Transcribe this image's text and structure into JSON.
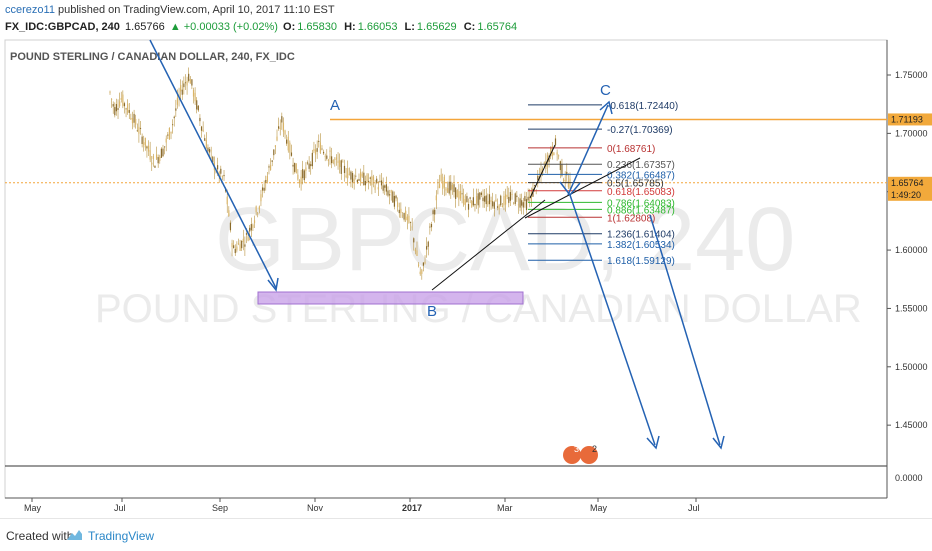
{
  "publish": {
    "author": "ccerezo11",
    "text": " published on TradingView.com, April 10, 2017 11:10 EST"
  },
  "ohlc": {
    "symbol": "FX_IDC:GBPCAD, 240",
    "last": "1.65766",
    "change": "▲ +0.00033 (+0.02%)",
    "open_label": "O:",
    "open": "1.65830",
    "high_label": "H:",
    "high": "1.66053",
    "low_label": "L:",
    "low": "1.65629",
    "close_label": "C:",
    "close": "1.65764"
  },
  "footer": {
    "created_with": "Created with",
    "brand": "TradingView"
  },
  "colors": {
    "candles": "#c9a04f",
    "arrow": "#2462b3",
    "fib_high": "#2a6fb5",
    "fib_red": "#d23a3a",
    "fib_green": "#2fb82f",
    "resistance": "#f4a53a",
    "support_box": "#c9a2e8",
    "label_bg": "#f2a93b"
  },
  "chart_data": {
    "type": "candlestick",
    "title": "POUND STERLING / CANADIAN DOLLAR, 240, FX_IDC",
    "watermark_symbol": "GBPCAD, 240",
    "watermark_name": "POUND STERLING / CANADIAN DOLLAR",
    "x_tick_labels": [
      "May",
      "Jul",
      "Sep",
      "Nov",
      "2017",
      "Mar",
      "May",
      "Jul"
    ],
    "y_axis": {
      "ticks": [
        1.75,
        1.7,
        1.65,
        1.6,
        1.55,
        1.5,
        1.45
      ],
      "tick_labels": [
        "1.75000",
        "1.70000",
        "1.65000",
        "1.60000",
        "1.55000",
        "1.50000",
        "1.45000"
      ],
      "range": [
        1.415,
        1.78
      ],
      "current_price": "1.65764",
      "countdown": "1:49:20",
      "resistance_price": "1.71193"
    },
    "price_path": [
      {
        "t": 0.0,
        "p": 1.735
      },
      {
        "t": 0.02,
        "p": 1.72
      },
      {
        "t": 0.05,
        "p": 1.73
      },
      {
        "t": 0.1,
        "p": 1.715
      },
      {
        "t": 0.15,
        "p": 1.695
      },
      {
        "t": 0.2,
        "p": 1.675
      },
      {
        "t": 0.24,
        "p": 1.685
      },
      {
        "t": 0.28,
        "p": 1.705
      },
      {
        "t": 0.32,
        "p": 1.735
      },
      {
        "t": 0.36,
        "p": 1.75
      },
      {
        "t": 0.4,
        "p": 1.72
      },
      {
        "t": 0.44,
        "p": 1.69
      },
      {
        "t": 0.48,
        "p": 1.67
      },
      {
        "t": 0.52,
        "p": 1.66
      },
      {
        "t": 0.56,
        "p": 1.6
      },
      {
        "t": 0.62,
        "p": 1.61
      },
      {
        "t": 0.68,
        "p": 1.64
      },
      {
        "t": 0.74,
        "p": 1.68
      },
      {
        "t": 0.78,
        "p": 1.711
      },
      {
        "t": 0.82,
        "p": 1.685
      },
      {
        "t": 0.86,
        "p": 1.66
      },
      {
        "t": 0.9,
        "p": 1.67
      },
      {
        "t": 0.95,
        "p": 1.69
      },
      {
        "t": 1.0,
        "p": 1.68
      }
    ],
    "price_path_2": [
      {
        "t": 0.0,
        "p": 1.68
      },
      {
        "t": 0.08,
        "p": 1.665
      },
      {
        "t": 0.15,
        "p": 1.66
      },
      {
        "t": 0.22,
        "p": 1.655
      },
      {
        "t": 0.28,
        "p": 1.64
      },
      {
        "t": 0.34,
        "p": 1.62
      },
      {
        "t": 0.38,
        "p": 1.575
      },
      {
        "t": 0.42,
        "p": 1.62
      },
      {
        "t": 0.46,
        "p": 1.66
      },
      {
        "t": 0.52,
        "p": 1.65
      },
      {
        "t": 0.58,
        "p": 1.64
      },
      {
        "t": 0.64,
        "p": 1.645
      },
      {
        "t": 0.7,
        "p": 1.64
      },
      {
        "t": 0.76,
        "p": 1.645
      },
      {
        "t": 0.82,
        "p": 1.64
      },
      {
        "t": 0.86,
        "p": 1.655
      },
      {
        "t": 0.9,
        "p": 1.675
      },
      {
        "t": 0.94,
        "p": 1.69
      },
      {
        "t": 0.97,
        "p": 1.665
      },
      {
        "t": 1.0,
        "p": 1.658
      }
    ],
    "wave_labels": [
      "A",
      "B",
      "C"
    ],
    "fib_levels": [
      {
        "label": "-0.618(1.72440)",
        "price": 1.7244,
        "color": "#1f3b66"
      },
      {
        "label": "-0.27(1.70369)",
        "price": 1.70369,
        "color": "#1f3b66"
      },
      {
        "label": "0(1.68761)",
        "price": 1.68761,
        "color": "#b83232"
      },
      {
        "label": "0.236(1.67357)",
        "price": 1.67357,
        "color": "#555555"
      },
      {
        "label": "0.382(1.66487)",
        "price": 1.66487,
        "color": "#1f5fa8"
      },
      {
        "label": "0.5(1.65785)",
        "price": 1.65785,
        "color": "#333333"
      },
      {
        "label": "0.618(1.65083)",
        "price": 1.65083,
        "color": "#d23a3a"
      },
      {
        "label": "0.786(1.64083)",
        "price": 1.64083,
        "color": "#2fb82f"
      },
      {
        "label": "0.886(1.63487)",
        "price": 1.63487,
        "color": "#2fb82f"
      },
      {
        "label": "1(1.62808)",
        "price": 1.62808,
        "color": "#b83232"
      },
      {
        "label": "1.236(1.61404)",
        "price": 1.61404,
        "color": "#1f3b66"
      },
      {
        "label": "1.382(1.60534)",
        "price": 1.60534,
        "color": "#1f5fa8"
      },
      {
        "label": "1.618(1.59129)",
        "price": 1.59129,
        "color": "#1f5fa8"
      }
    ],
    "oscillator": {
      "tick_labels": [
        "0.0000"
      ]
    },
    "event_badges": [
      "3",
      "2"
    ]
  }
}
